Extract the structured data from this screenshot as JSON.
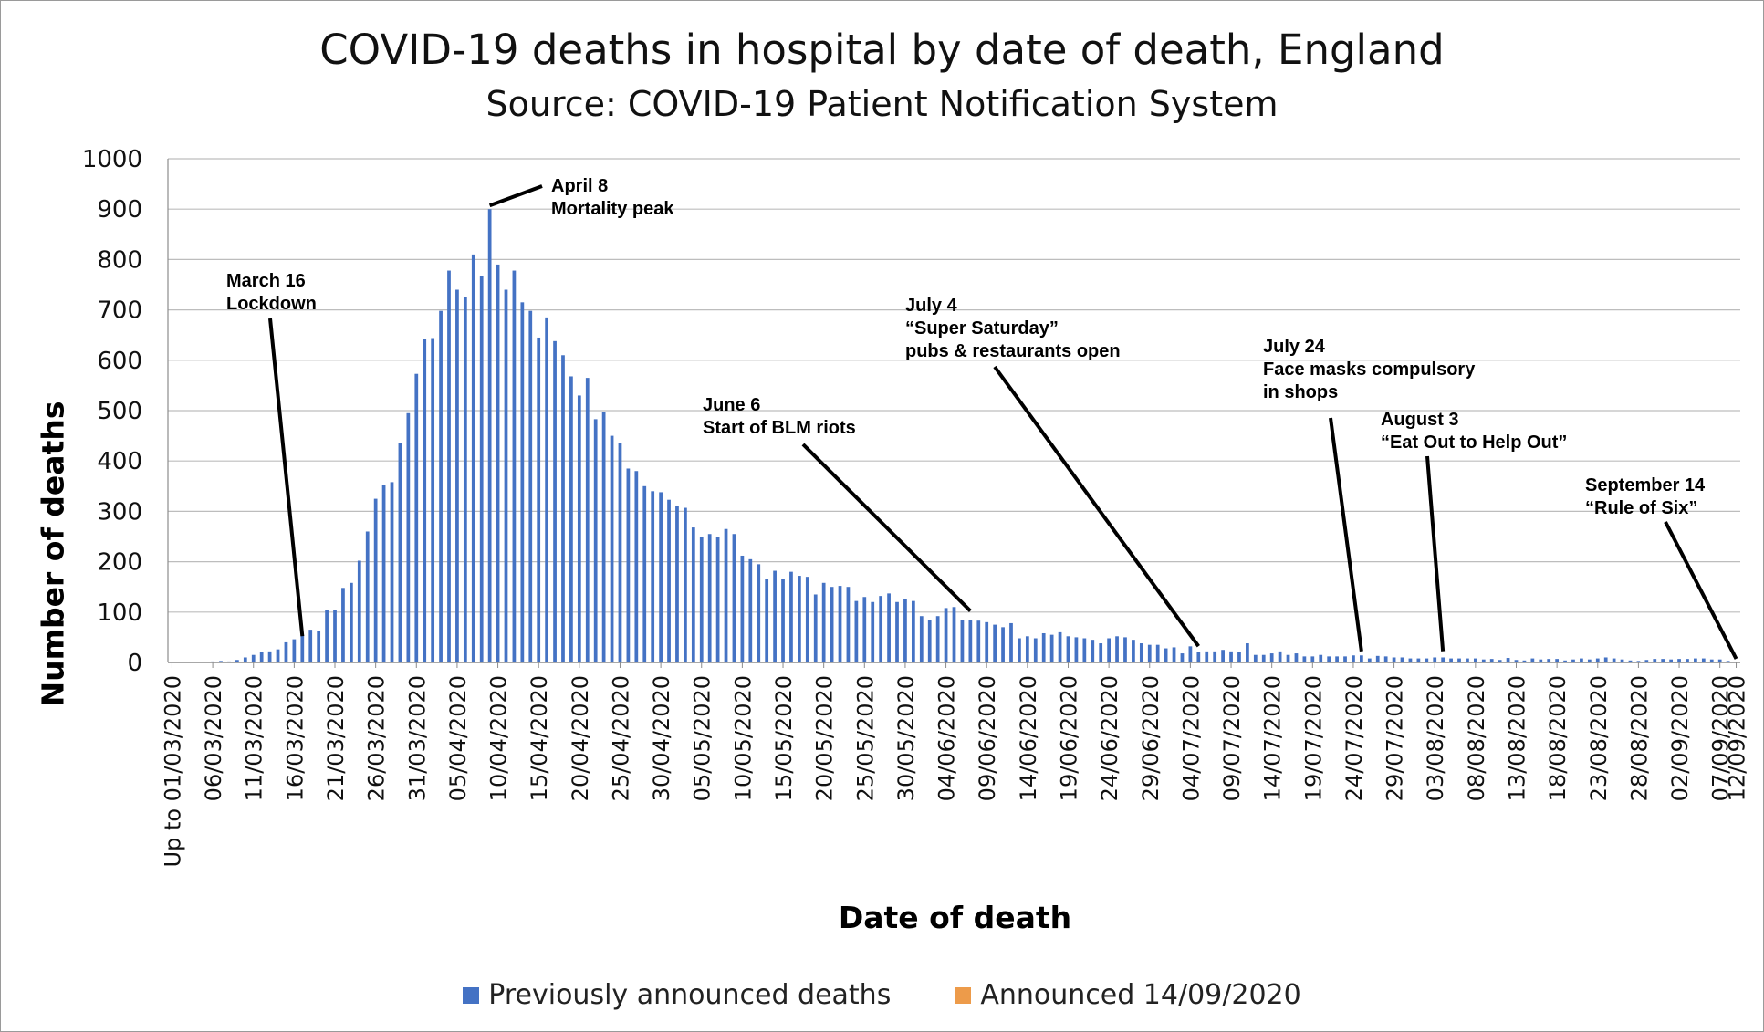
{
  "colors": {
    "previous": "#4472C4",
    "announced": "#ED9B4A",
    "grid": "#bdbdbd",
    "axis": "#8c8c8c",
    "annotation": "#000000"
  },
  "chart_data": {
    "type": "bar",
    "title": "COVID-19 deaths in hospital by date of death, England",
    "subtitle": "Source: COVID-19 Patient Notification System",
    "xlabel": "Date of death",
    "ylabel": "Number of deaths",
    "ylim": [
      0,
      1000
    ],
    "yticks": [
      0,
      100,
      200,
      300,
      400,
      500,
      600,
      700,
      800,
      900,
      1000
    ],
    "grid": true,
    "legend_position": "bottom",
    "x_tick_labels": [
      "Up to 01/03/2020",
      "06/03/2020",
      "11/03/2020",
      "16/03/2020",
      "21/03/2020",
      "26/03/2020",
      "31/03/2020",
      "05/04/2020",
      "10/04/2020",
      "15/04/2020",
      "20/04/2020",
      "25/04/2020",
      "30/04/2020",
      "05/05/2020",
      "10/05/2020",
      "15/05/2020",
      "20/05/2020",
      "25/05/2020",
      "30/05/2020",
      "04/06/2020",
      "09/06/2020",
      "14/06/2020",
      "19/06/2020",
      "24/06/2020",
      "29/06/2020",
      "04/07/2020",
      "09/07/2020",
      "14/07/2020",
      "19/07/2020",
      "24/07/2020",
      "29/07/2020",
      "03/08/2020",
      "08/08/2020",
      "13/08/2020",
      "18/08/2020",
      "23/08/2020",
      "28/08/2020",
      "02/09/2020",
      "07/09/2020",
      "12/09/2020"
    ],
    "x_tick_every": 5,
    "x_start": "Up to 01/03/2020",
    "x_end": "13/09/2020",
    "series": [
      {
        "name": "Previously announced deaths",
        "values": [
          0,
          0,
          0,
          0,
          0,
          2,
          3,
          2,
          5,
          10,
          15,
          20,
          22,
          26,
          40,
          46,
          55,
          65,
          62,
          104,
          104,
          148,
          158,
          202,
          260,
          325,
          352,
          358,
          435,
          495,
          573,
          643,
          644,
          698,
          778,
          740,
          725,
          810,
          767,
          900,
          790,
          740,
          778,
          715,
          698,
          645,
          685,
          638,
          610,
          568,
          530,
          565,
          483,
          498,
          450,
          435,
          385,
          380,
          350,
          340,
          338,
          323,
          310,
          307,
          268,
          250,
          255,
          250,
          265,
          255,
          212,
          205,
          195,
          165,
          182,
          165,
          180,
          172,
          170,
          135,
          158,
          150,
          152,
          150,
          122,
          130,
          120,
          132,
          137,
          120,
          125,
          122,
          92,
          85,
          92,
          108,
          110,
          85,
          85,
          83,
          80,
          75,
          70,
          78,
          48,
          52,
          48,
          58,
          55,
          60,
          52,
          50,
          48,
          45,
          38,
          48,
          52,
          50,
          45,
          38,
          35,
          35,
          28,
          30,
          18,
          32,
          20,
          22,
          22,
          25,
          22,
          20,
          38,
          15,
          15,
          18,
          22,
          15,
          18,
          12,
          12,
          15,
          12,
          12,
          12,
          14,
          14,
          8,
          13,
          12,
          10,
          10,
          8,
          8,
          8,
          10,
          10,
          8,
          8,
          8,
          8,
          6,
          7,
          5,
          9,
          5,
          4,
          8,
          6,
          7,
          7,
          4,
          6,
          8,
          6,
          8,
          10,
          8,
          6,
          4,
          3,
          5,
          7,
          7,
          6,
          7,
          7,
          8,
          8,
          6,
          6,
          3,
          0
        ]
      },
      {
        "name": "Announced 14/09/2020",
        "values": [
          0,
          0,
          0,
          0,
          0,
          0,
          0,
          0,
          0,
          0,
          0,
          0,
          0,
          0,
          0,
          0,
          0,
          0,
          0,
          0,
          0,
          0,
          0,
          0,
          0,
          0,
          0,
          0,
          0,
          0,
          0,
          0,
          0,
          0,
          0,
          0,
          0,
          0,
          0,
          0,
          0,
          0,
          0,
          0,
          0,
          0,
          0,
          0,
          0,
          0,
          0,
          0,
          0,
          0,
          0,
          0,
          0,
          0,
          0,
          0,
          0,
          0,
          0,
          0,
          0,
          0,
          0,
          0,
          0,
          0,
          0,
          0,
          0,
          0,
          0,
          0,
          0,
          0,
          0,
          0,
          0,
          0,
          0,
          0,
          0,
          0,
          0,
          0,
          0,
          0,
          0,
          0,
          0,
          0,
          0,
          0,
          0,
          0,
          0,
          0,
          0,
          0,
          0,
          0,
          0,
          0,
          0,
          0,
          0,
          0,
          0,
          0,
          0,
          0,
          0,
          0,
          0,
          0,
          0,
          0,
          0,
          0,
          0,
          0,
          0,
          0,
          0,
          0,
          0,
          0,
          0,
          0,
          0,
          0,
          0,
          0,
          0,
          0,
          0,
          0,
          0,
          0,
          0,
          0,
          0,
          0,
          0,
          0,
          0,
          0,
          0,
          0,
          0,
          0,
          0,
          0,
          0,
          0,
          0,
          0,
          0,
          0,
          0,
          0,
          0,
          0,
          0,
          0,
          0,
          0,
          0,
          0,
          0,
          0,
          0,
          0,
          0,
          0,
          0,
          0,
          0,
          0,
          0,
          0,
          0,
          0,
          0,
          0,
          0,
          0,
          0,
          0,
          0,
          0,
          1,
          2,
          3
        ]
      }
    ],
    "annotations": [
      {
        "lines": [
          "March 16",
          "Lockdown"
        ],
        "target_date": "16/03/2020",
        "target_value": 45
      },
      {
        "lines": [
          "April 8",
          "Mortality peak"
        ],
        "target_date": "08/04/2020",
        "target_value": 900
      },
      {
        "lines": [
          "June 6",
          "Start of BLM riots"
        ],
        "target_date": "06/06/2020",
        "target_value": 95
      },
      {
        "lines": [
          "July 4",
          "“Super Saturday”",
          "pubs & restaurants open"
        ],
        "target_date": "04/07/2020",
        "target_value": 25
      },
      {
        "lines": [
          "July 24",
          "Face masks compulsory",
          "in shops"
        ],
        "target_date": "24/07/2020",
        "target_value": 15
      },
      {
        "lines": [
          "August 3",
          "“Eat Out to Help Out”"
        ],
        "target_date": "03/08/2020",
        "target_value": 15
      },
      {
        "lines": [
          "September 14",
          "“Rule of Six”"
        ],
        "target_date": "13/09/2020",
        "target_value": 0
      }
    ]
  }
}
